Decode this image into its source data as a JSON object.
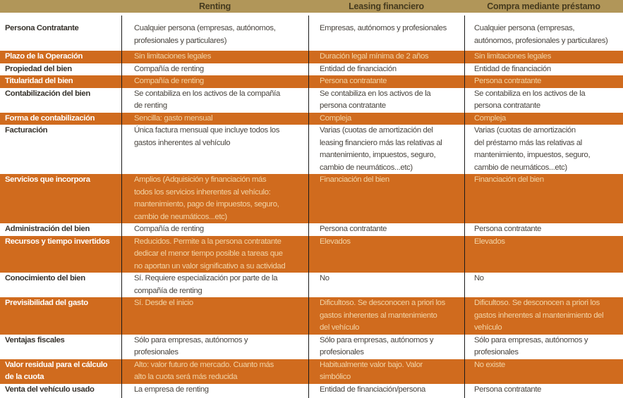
{
  "colors": {
    "header_band": "#b19659",
    "header_text": "#453a1e",
    "highlight_row": "#d06b1e",
    "highlight_cell_text": "#f2d4a6",
    "highlight_label_text": "#ffffff",
    "divider": "#1a1a1a"
  },
  "header": {
    "columns": [
      "Renting",
      "Leasing financiero",
      "Compra mediante préstamo"
    ]
  },
  "rows": [
    {
      "label": "Persona Contratante",
      "renting": "Cualquier persona (empresas, autónomos,\nprofesionales y particulares)",
      "leasing": "Empresas, autónomos y profesionales",
      "compra": "Cualquier persona (empresas,\nautónomos, profesionales y particulares)"
    },
    {
      "label": "Plazo de la Operación",
      "renting": "Sin limitaciones legales",
      "leasing": "Duración legal mínima de 2 años",
      "compra": "Sin limitaciones legales"
    },
    {
      "label": "Propiedad del bien",
      "renting": "Compañía de renting",
      "leasing": "Entidad de financiación",
      "compra": "Entidad de financiación"
    },
    {
      "label": "Titularidad del bien",
      "renting": "Compañía de renting",
      "leasing": "Persona contratante",
      "compra": "Persona contratante"
    },
    {
      "label": "Contabilización del bien",
      "renting": "Se contabiliza en los activos de la compañía\nde renting",
      "leasing": "Se contabiliza en los activos de la\npersona contratante",
      "compra": "Se contabiliza en los activos de la\npersona contratante"
    },
    {
      "label": "Forma de contabilización",
      "renting": "Sencilla: gasto mensual",
      "leasing": "Compleja",
      "compra": "Compleja"
    },
    {
      "label": "Facturación",
      "renting": "Única factura mensual que incluye todos los\ngastos inherentes al vehículo",
      "leasing": "Varias (cuotas de amortización del\nleasing financiero más las relativas al\nmantenimiento, impuestos, seguro,\ncambio de neumáticos...etc)",
      "compra": "Varias (cuotas de amortización\ndel préstamo más las relativas al\nmantenimiento, impuestos, seguro,\ncambio de neumáticos...etc)"
    },
    {
      "label": "Servicios que incorpora",
      "renting": "Amplios (Adquisición y financiación más\ntodos los servicios inherentes al vehículo:\nmantenimiento, pago de impuestos, seguro,\ncambio de neumáticos...etc)",
      "leasing": "Financiación del bien",
      "compra": "Financiación del bien"
    },
    {
      "label": "Administración del bien",
      "renting": "Compañía de renting",
      "leasing": "Persona contratante",
      "compra": "Persona contratante"
    },
    {
      "label": "Recursos y tiempo invertidos",
      "renting": "Reducidos. Permite a la persona contratante\ndedicar el menor tiempo posible a tareas que\nno aportan un valor significativo a su actividad",
      "leasing": "Elevados",
      "compra": "Elevados"
    },
    {
      "label": "Conocimiento del bien",
      "renting": "Sí. Requiere especialización por parte de la\ncompañía de renting",
      "leasing": "No",
      "compra": "No"
    },
    {
      "label": "Previsibilidad del gasto",
      "renting": "Sí. Desde el inicio",
      "leasing": "Dificultoso. Se desconocen a priori los\ngastos inherentes al mantenimiento\ndel vehículo",
      "compra": "Dificultoso. Se desconocen a priori los\ngastos inherentes al mantenimiento del\nvehículo"
    },
    {
      "label": "Ventajas fiscales",
      "renting": "Sólo para empresas, autónomos y\nprofesionales",
      "leasing": "Sólo para empresas, autónomos y\nprofesionales",
      "compra": "Sólo para empresas, autónomos y\nprofesionales"
    },
    {
      "label": "Valor residual para el cálculo\nde la cuota",
      "renting": "Alto: valor futuro de mercado. Cuanto más\nalto la cuota será más reducida",
      "leasing": "Habitualmente valor bajo. Valor\nsimbólico",
      "compra": "No existe"
    },
    {
      "label": "Venta del vehículo usado",
      "renting": "La empresa de renting",
      "leasing": "Entidad de financiación/persona",
      "compra": "Persona contratante"
    }
  ]
}
